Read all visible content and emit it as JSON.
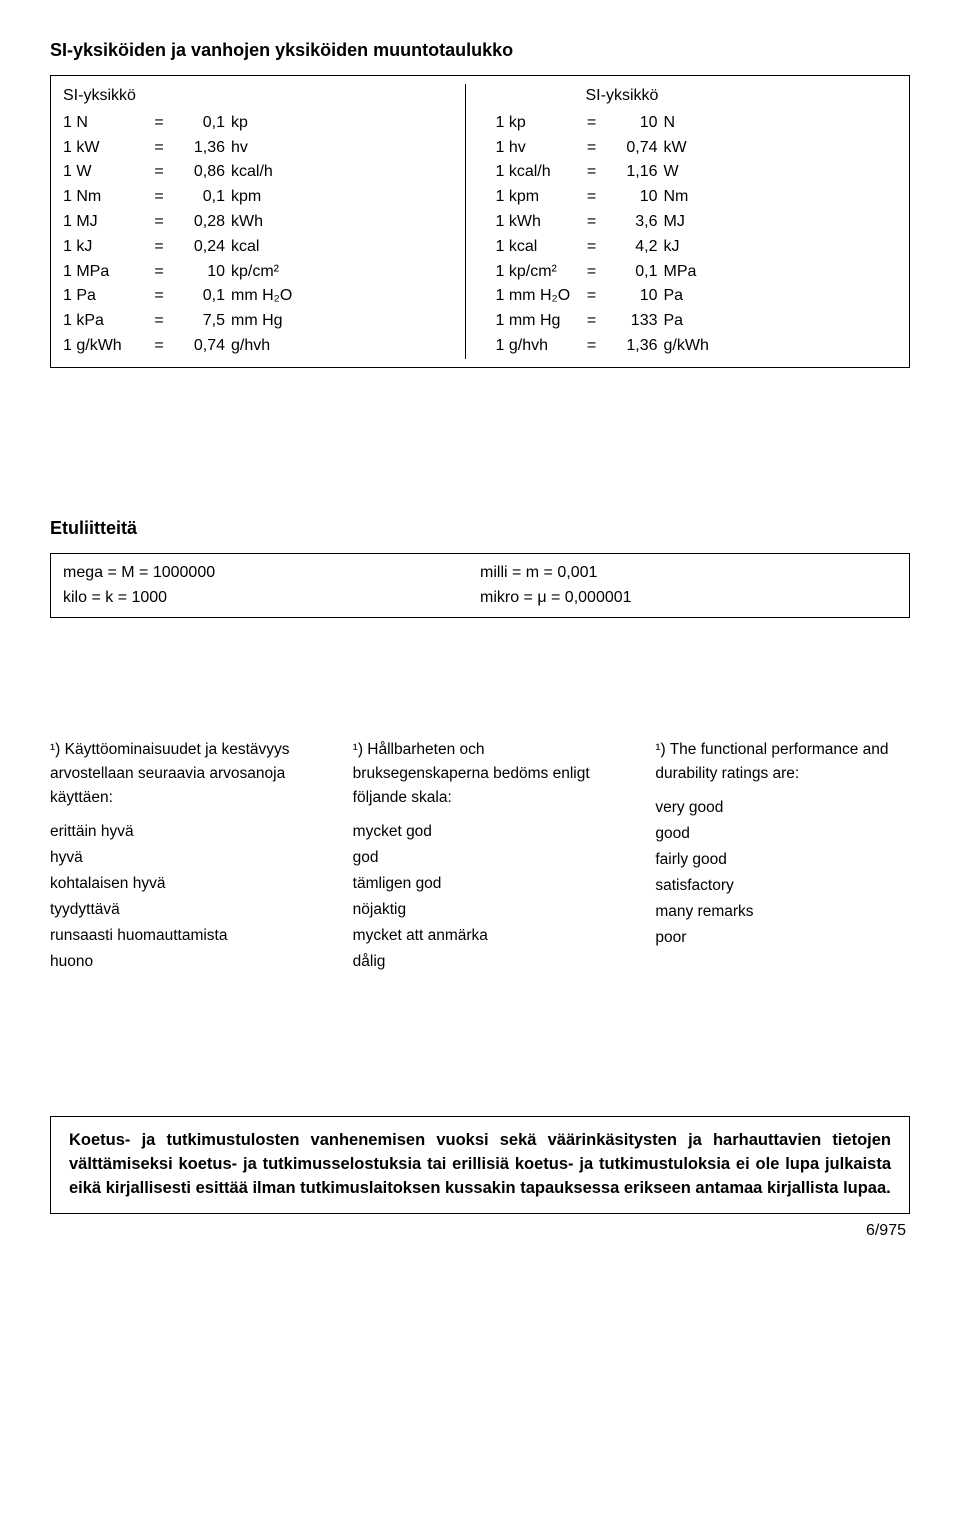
{
  "title_main": "SI-yksiköiden ja vanhojen yksiköiden muuntotaulukko",
  "header_left": "SI-yksikkö",
  "header_right": "SI-yksikkö",
  "conv_left": [
    {
      "q": "1 N",
      "eq": "=",
      "v": "0,1",
      "u": "kp"
    },
    {
      "q": "1 kW",
      "eq": "=",
      "v": "1,36",
      "u": "hv"
    },
    {
      "q": "1 W",
      "eq": "=",
      "v": "0,86",
      "u": "kcal/h"
    },
    {
      "q": "1 Nm",
      "eq": "=",
      "v": "0,1",
      "u": "kpm"
    },
    {
      "q": "1 MJ",
      "eq": "=",
      "v": "0,28",
      "u": "kWh"
    },
    {
      "q": "1 kJ",
      "eq": "=",
      "v": "0,24",
      "u": "kcal"
    },
    {
      "q": "1 MPa",
      "eq": "=",
      "v": "10",
      "u": "kp/cm²"
    },
    {
      "q": "1 Pa",
      "eq": "=",
      "v": "0,1",
      "u": "mm H₂O"
    },
    {
      "q": "1 kPa",
      "eq": "=",
      "v": "7,5",
      "u": "mm Hg"
    },
    {
      "q": "1 g/kWh",
      "eq": "=",
      "v": "0,74",
      "u": "g/hvh"
    }
  ],
  "conv_right": [
    {
      "q": "1 kp",
      "eq": "=",
      "v": "10",
      "u": "N"
    },
    {
      "q": "1 hv",
      "eq": "=",
      "v": "0,74",
      "u": "kW"
    },
    {
      "q": "1 kcal/h",
      "eq": "=",
      "v": "1,16",
      "u": "W"
    },
    {
      "q": "1 kpm",
      "eq": "=",
      "v": "10",
      "u": "Nm"
    },
    {
      "q": "1 kWh",
      "eq": "=",
      "v": "3,6",
      "u": "MJ"
    },
    {
      "q": "1 kcal",
      "eq": "=",
      "v": "4,2",
      "u": "kJ"
    },
    {
      "q": "1 kp/cm²",
      "eq": "=",
      "v": "0,1",
      "u": "MPa"
    },
    {
      "q": "1 mm H₂O",
      "eq": "=",
      "v": "10",
      "u": "Pa"
    },
    {
      "q": "1 mm Hg",
      "eq": "=",
      "v": "133",
      "u": "Pa"
    },
    {
      "q": "1 g/hvh",
      "eq": "=",
      "v": "1,36",
      "u": "g/kWh"
    }
  ],
  "prefixes_title": "Etuliitteitä",
  "prefixes_left": [
    "mega = M = 1000000",
    "kilo   = k  = 1000"
  ],
  "prefixes_right": [
    "milli  = m = 0,001",
    "mikro = μ = 0,000001"
  ],
  "ratings": {
    "fi": {
      "intro": "¹) Käyttöominaisuudet ja kestävyys arvostellaan seuraavia arvosanoja käyttäen:",
      "items": [
        "erittäin hyvä",
        "hyvä",
        "kohtalaisen hyvä",
        "tyydyttävä",
        "runsaasti huomauttamista",
        "huono"
      ]
    },
    "sv": {
      "intro": "¹) Hållbarheten och bruksegenskaperna bedöms enligt följande skala:",
      "items": [
        "mycket god",
        "god",
        "tämligen god",
        "nöjaktig",
        "mycket att anmärka",
        "dålig"
      ]
    },
    "en": {
      "intro": "¹) The functional performance and durability ratings are:",
      "items": [
        "very good",
        "good",
        "fairly good",
        "satisfactory",
        "many remarks",
        "poor"
      ]
    }
  },
  "disclaimer": "Koetus- ja tutkimustulosten vanhenemisen vuoksi sekä väärinkäsitysten ja harhauttavien tietojen välttämiseksi koetus- ja tutkimusselostuksia tai erillisiä koetus- ja tutkimustuloksia ei ole lupa julkaista eikä kirjallisesti esittää ilman tutkimuslaitoksen kussakin tapauksessa erikseen antamaa kirjallista lupaa.",
  "page_num": "6/975"
}
